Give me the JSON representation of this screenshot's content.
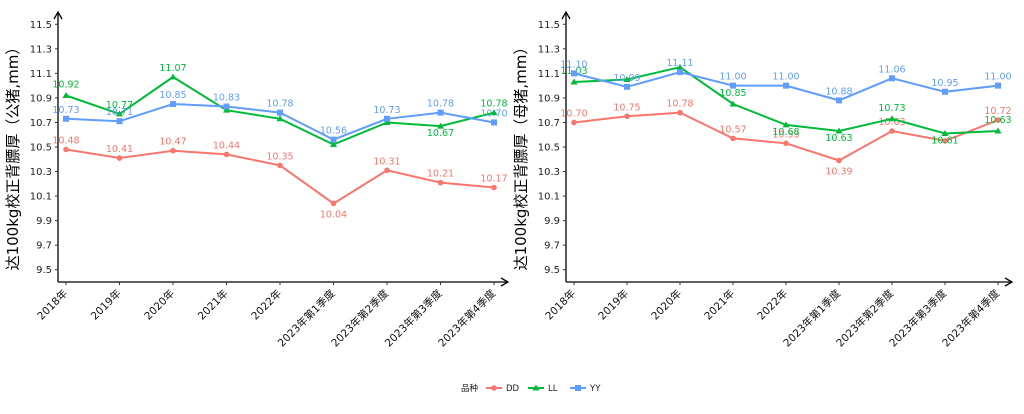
{
  "chart_data": [
    {
      "type": "line",
      "ylabel": "达100kg校正背膘厚（公猪,mm）",
      "xlabel": "",
      "ylim": [
        9.4,
        11.6
      ],
      "yticks": [
        "9.5",
        "9.7",
        "9.9",
        "10.1",
        "10.3",
        "10.5",
        "10.7",
        "10.9",
        "11.1",
        "11.3",
        "11.5"
      ],
      "categories": [
        "2018年",
        "2019年",
        "2020年",
        "2021年",
        "2022年",
        "2023年第1季度",
        "2023年第2季度",
        "2023年第3季度",
        "2023年第4季度"
      ],
      "series": [
        {
          "name": "DD",
          "color": "#F8766D",
          "values": [
            10.48,
            10.41,
            10.47,
            10.44,
            10.35,
            10.04,
            10.31,
            10.21,
            10.17
          ],
          "labels": [
            "10.48",
            "10.41",
            "10.47",
            "10.44",
            "10.35",
            "10.04",
            "10.31",
            "10.21",
            "10.17"
          ]
        },
        {
          "name": "LL",
          "color": "#00BA38",
          "values": [
            10.92,
            10.77,
            11.07,
            10.8,
            10.73,
            10.52,
            10.7,
            10.67,
            10.78
          ],
          "labels": [
            "10.92",
            "10.77",
            "11.07",
            "",
            "",
            "",
            "",
            "10.67",
            "10.78"
          ]
        },
        {
          "name": "YY",
          "color": "#619CFF",
          "values": [
            10.73,
            10.71,
            10.85,
            10.83,
            10.78,
            10.56,
            10.73,
            10.78,
            10.7
          ],
          "labels": [
            "10.73",
            "10.71",
            "10.85",
            "10.83",
            "10.78",
            "10.56",
            "10.73",
            "10.78",
            "10.70"
          ]
        }
      ]
    },
    {
      "type": "line",
      "ylabel": "达100kg校正背膘厚（母猪,mm）",
      "xlabel": "",
      "ylim": [
        9.4,
        11.6
      ],
      "yticks": [
        "9.5",
        "9.7",
        "9.9",
        "10.1",
        "10.3",
        "10.5",
        "10.7",
        "10.9",
        "11.1",
        "11.3",
        "11.5"
      ],
      "categories": [
        "2018年",
        "2019年",
        "2020年",
        "2021年",
        "2022年",
        "2023年第1季度",
        "2023年第2季度",
        "2023年第3季度",
        "2023年第4季度"
      ],
      "series": [
        {
          "name": "DD",
          "color": "#F8766D",
          "values": [
            10.7,
            10.75,
            10.78,
            10.57,
            10.53,
            10.39,
            10.63,
            10.55,
            10.72
          ],
          "labels": [
            "10.70",
            "10.75",
            "10.78",
            "10.57",
            "10.53",
            "10.39",
            "10.63",
            "",
            "10.72"
          ]
        },
        {
          "name": "LL",
          "color": "#00BA38",
          "values": [
            11.03,
            11.05,
            11.15,
            10.85,
            10.68,
            10.63,
            10.73,
            10.61,
            10.63
          ],
          "labels": [
            "11.03",
            "",
            "",
            "10.85",
            "10.68",
            "10.63",
            "10.73",
            "10.61",
            "10.63"
          ]
        },
        {
          "name": "YY",
          "color": "#619CFF",
          "values": [
            11.1,
            10.99,
            11.11,
            11.0,
            11.0,
            10.88,
            11.06,
            10.95,
            11.0
          ],
          "labels": [
            "11.10",
            "10.99",
            "11.11",
            "11.00",
            "11.00",
            "10.88",
            "11.06",
            "10.95",
            "11.00"
          ]
        }
      ]
    }
  ],
  "legend": {
    "title": "品种",
    "items": [
      {
        "name": "DD",
        "color": "#F8766D"
      },
      {
        "name": "LL",
        "color": "#00BA38"
      },
      {
        "name": "YY",
        "color": "#619CFF"
      }
    ],
    "position": "bottom"
  }
}
